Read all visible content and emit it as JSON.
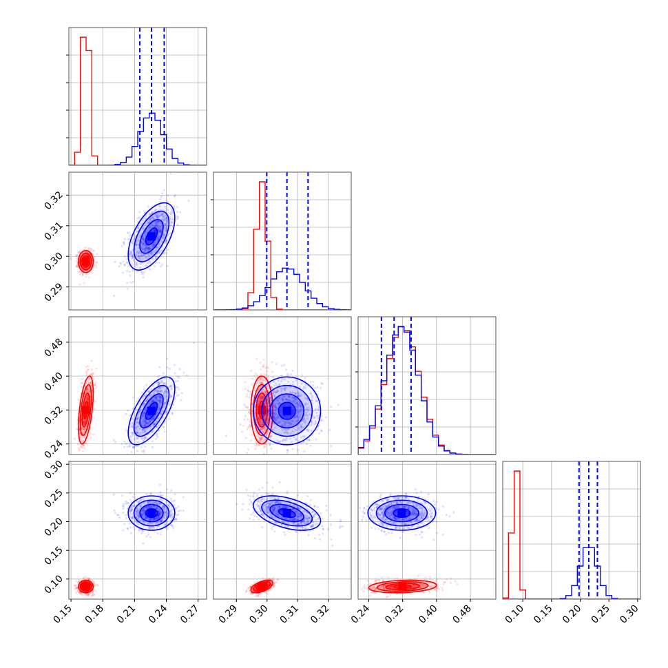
{
  "colors": {
    "series_a": "#ff0000",
    "series_b": "#0000ff",
    "grid": "#b0b0b0",
    "frame": "#555555"
  },
  "parameters": [
    {
      "ticks": [
        "0.15",
        "0.18",
        "0.21",
        "0.24",
        "0.27"
      ],
      "tick_values": [
        0.15,
        0.18,
        0.21,
        0.24,
        0.27
      ],
      "range": [
        0.148,
        0.278
      ]
    },
    {
      "ticks": [
        "0.29",
        "0.30",
        "0.31",
        "0.32"
      ],
      "tick_values": [
        0.29,
        0.3,
        0.31,
        0.32
      ],
      "range": [
        0.2825,
        0.3275
      ]
    },
    {
      "ticks": [
        "0.24",
        "0.32",
        "0.40",
        "0.48"
      ],
      "tick_values": [
        0.24,
        0.32,
        0.4,
        0.48
      ],
      "range": [
        0.215,
        0.54
      ]
    },
    {
      "ticks": [
        "0.10",
        "0.15",
        "0.20",
        "0.25",
        "0.30"
      ],
      "tick_values": [
        0.1,
        0.15,
        0.2,
        0.25,
        0.3
      ],
      "range": [
        0.065,
        0.305
      ]
    }
  ],
  "chart_data": {
    "type": "corner",
    "dimension": 4,
    "series": [
      {
        "color_key": "series_a",
        "means": [
          0.164,
          0.2983,
          0.32,
          0.087
        ],
        "sigmas": [
          0.0035,
          0.0018,
          0.04,
          0.0055
        ],
        "correlations": {
          "1-0": 0.0,
          "2-0": 0.5,
          "2-1": 0.0,
          "3-0": 0.0,
          "3-1": 0.55,
          "3-2": 0.2
        }
      },
      {
        "color_key": "series_b",
        "means": [
          0.226,
          0.3065,
          0.318,
          0.215
        ],
        "sigmas": [
          0.011,
          0.0055,
          0.04,
          0.015
        ],
        "correlations": {
          "1-0": 0.55,
          "2-0": 0.65,
          "2-1": 0.0,
          "3-0": 0.0,
          "3-1": -0.45,
          "3-2": 0.0
        },
        "quantiles": [
          [
            0.215,
            0.226,
            0.238
          ],
          [
            0.2999,
            0.3065,
            0.3134
          ],
          [
            0.27,
            0.3,
            0.34
          ],
          [
            0.198,
            0.215,
            0.23
          ]
        ]
      }
    ],
    "contour_levels_sigma": [
      0.5,
      1.0,
      1.5,
      2.0
    ],
    "grid": true
  }
}
